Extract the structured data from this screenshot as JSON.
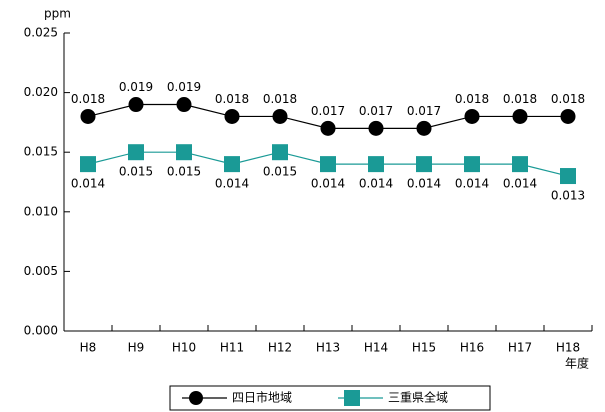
{
  "chart_data": {
    "type": "line",
    "y_label": "ppm",
    "x_label": "年度",
    "categories": [
      "H8",
      "H9",
      "H10",
      "H11",
      "H12",
      "H13",
      "H14",
      "H15",
      "H16",
      "H17",
      "H18"
    ],
    "series": [
      {
        "name": "四日市地域",
        "color": "#000000",
        "marker": "circle",
        "label_position": "above",
        "values": [
          0.018,
          0.019,
          0.019,
          0.018,
          0.018,
          0.017,
          0.017,
          0.017,
          0.018,
          0.018,
          0.018
        ]
      },
      {
        "name": "三重県全域",
        "color": "#1a9a96",
        "marker": "square",
        "label_position": "below",
        "values": [
          0.014,
          0.015,
          0.015,
          0.014,
          0.015,
          0.014,
          0.014,
          0.014,
          0.014,
          0.014,
          0.013
        ]
      }
    ],
    "ylim": [
      0,
      0.025
    ],
    "yticks": [
      {
        "value": 0,
        "label": "0.000"
      },
      {
        "value": 0.005,
        "label": "0.005"
      },
      {
        "value": 0.01,
        "label": "0.010"
      },
      {
        "value": 0.015,
        "label": "0.015"
      },
      {
        "value": 0.02,
        "label": "0.020"
      },
      {
        "value": 0.025,
        "label": "0.025"
      }
    ],
    "grid": false
  }
}
